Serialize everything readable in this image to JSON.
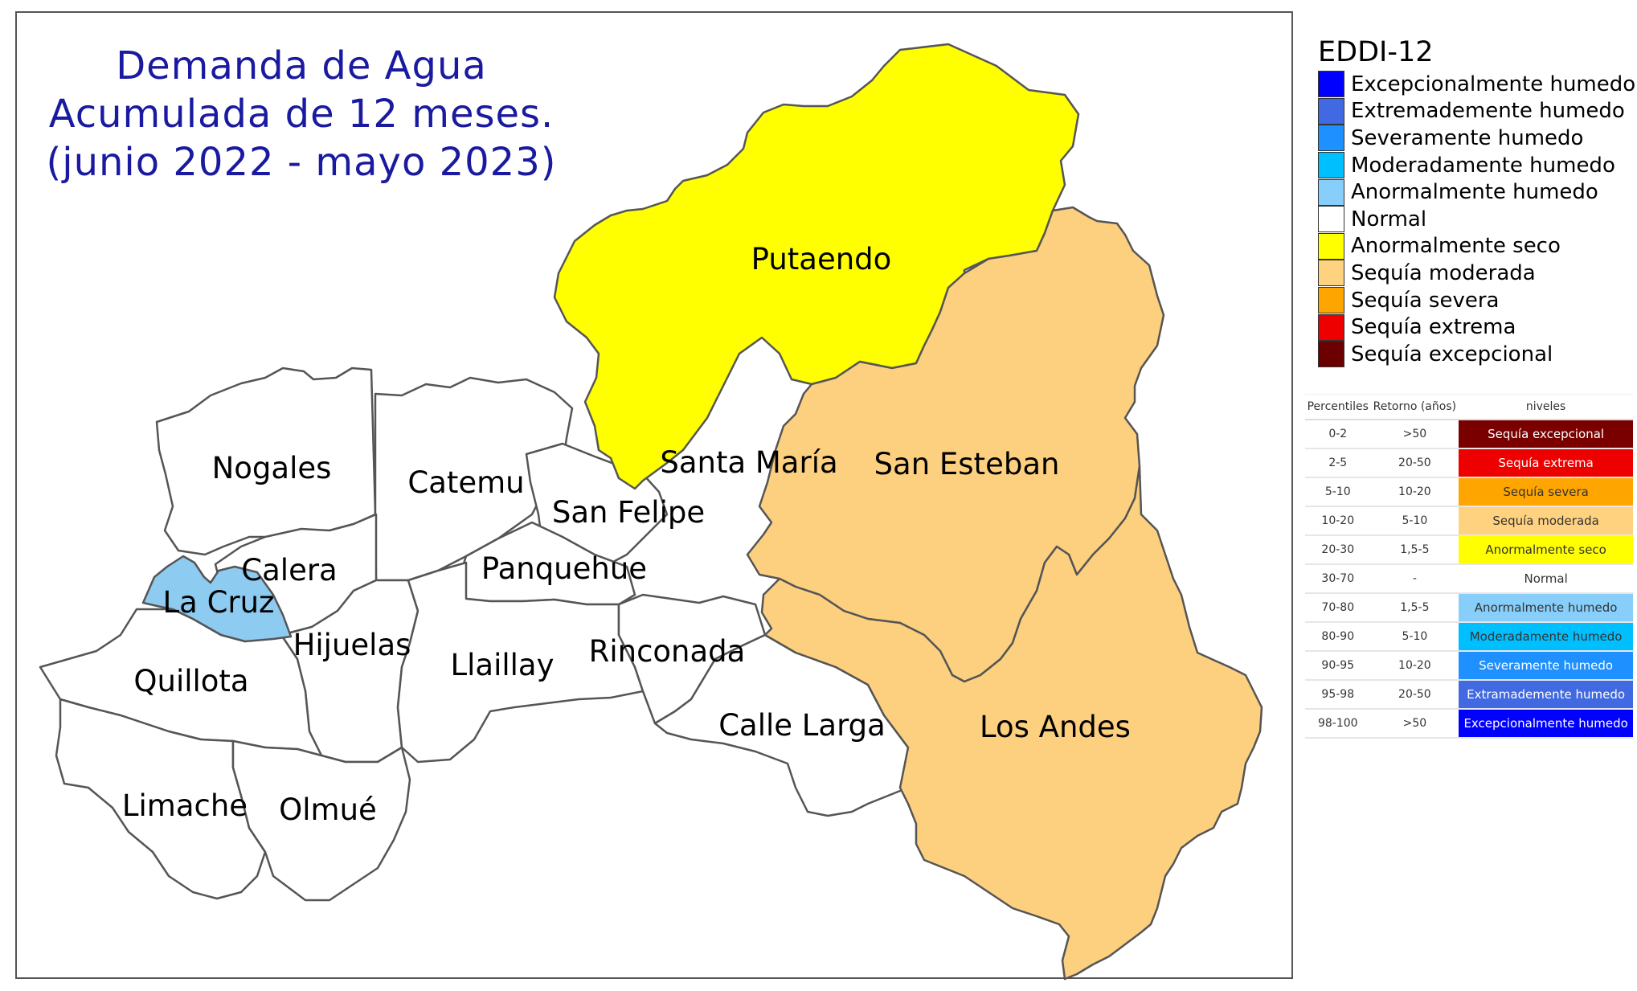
{
  "title": {
    "line1": "Demanda de Agua",
    "line2": "Acumulada de 12 meses.",
    "line3": "(junio 2022 - mayo 2023)"
  },
  "regions": [
    {
      "name": "Putaendo",
      "category": "Anormalmente seco",
      "color": "#ffff00"
    },
    {
      "name": "San Esteban",
      "category": "Sequía moderada",
      "color": "#fdd080"
    },
    {
      "name": "Los Andes",
      "category": "Sequía moderada",
      "color": "#fdd080"
    },
    {
      "name": "La Cruz",
      "category": "Anormalmente humedo",
      "color": "#8dcbf0"
    },
    {
      "name": "Santa María",
      "category": "Normal",
      "color": "#ffffff"
    },
    {
      "name": "Nogales",
      "category": "Normal",
      "color": "#ffffff"
    },
    {
      "name": "Catemu",
      "category": "Normal",
      "color": "#ffffff"
    },
    {
      "name": "San Felipe",
      "category": "Normal",
      "color": "#ffffff"
    },
    {
      "name": "Calera",
      "category": "Normal",
      "color": "#ffffff"
    },
    {
      "name": "Panquehue",
      "category": "Normal",
      "color": "#ffffff"
    },
    {
      "name": "Hijuelas",
      "category": "Normal",
      "color": "#ffffff"
    },
    {
      "name": "Llaillay",
      "category": "Normal",
      "color": "#ffffff"
    },
    {
      "name": "Rinconada",
      "category": "Normal",
      "color": "#ffffff"
    },
    {
      "name": "Quillota",
      "category": "Normal",
      "color": "#ffffff"
    },
    {
      "name": "Calle Larga",
      "category": "Normal",
      "color": "#ffffff"
    },
    {
      "name": "Limache",
      "category": "Normal",
      "color": "#ffffff"
    },
    {
      "name": "Olmué",
      "category": "Normal",
      "color": "#ffffff"
    }
  ],
  "legend": {
    "title": "EDDI-12",
    "items": [
      {
        "label": "Excepcionalmente humedo",
        "color": "#0000ff"
      },
      {
        "label": "Extremademente humedo",
        "color": "#4169e1"
      },
      {
        "label": "Severamente humedo",
        "color": "#1e90ff"
      },
      {
        "label": "Moderadamente humedo",
        "color": "#00bfff"
      },
      {
        "label": "Anormalmente humedo",
        "color": "#87cefa"
      },
      {
        "label": "Normal",
        "color": "#ffffff"
      },
      {
        "label": "Anormalmente seco",
        "color": "#ffff00"
      },
      {
        "label": "Sequía moderada",
        "color": "#ffd280"
      },
      {
        "label": "Sequía severa",
        "color": "#ffa500"
      },
      {
        "label": "Sequía extrema",
        "color": "#ee0000"
      },
      {
        "label": "Sequía excepcional",
        "color": "#6b0000"
      }
    ]
  },
  "table": {
    "headers": [
      "Percentiles",
      "Retorno (años)",
      "niveles"
    ],
    "rows": [
      {
        "percentiles": "0-2",
        "retorno": ">50",
        "nivel": "Sequía excepcional",
        "bg": "#7a0000",
        "fg": "#ffffff"
      },
      {
        "percentiles": "2-5",
        "retorno": "20-50",
        "nivel": "Sequía extrema",
        "bg": "#ee0000",
        "fg": "#ffffff"
      },
      {
        "percentiles": "5-10",
        "retorno": "10-20",
        "nivel": "Sequía severa",
        "bg": "#ffa500",
        "fg": "#333333"
      },
      {
        "percentiles": "10-20",
        "retorno": "5-10",
        "nivel": "Sequía moderada",
        "bg": "#ffd280",
        "fg": "#333333"
      },
      {
        "percentiles": "20-30",
        "retorno": "1,5-5",
        "nivel": "Anormalmente seco",
        "bg": "#ffff00",
        "fg": "#333333"
      },
      {
        "percentiles": "30-70",
        "retorno": "-",
        "nivel": "Normal",
        "bg": "#ffffff",
        "fg": "#333333"
      },
      {
        "percentiles": "70-80",
        "retorno": "1,5-5",
        "nivel": "Anormalmente humedo",
        "bg": "#87cefa",
        "fg": "#333333"
      },
      {
        "percentiles": "80-90",
        "retorno": "5-10",
        "nivel": "Moderadamente humedo",
        "bg": "#00bfff",
        "fg": "#333333"
      },
      {
        "percentiles": "90-95",
        "retorno": "10-20",
        "nivel": "Severamente humedo",
        "bg": "#1e90ff",
        "fg": "#ffffff"
      },
      {
        "percentiles": "95-98",
        "retorno": "20-50",
        "nivel": "Extramademente humedo",
        "bg": "#4169e1",
        "fg": "#ffffff"
      },
      {
        "percentiles": "98-100",
        "retorno": ">50",
        "nivel": "Excepcionalmente humedo",
        "bg": "#0000ff",
        "fg": "#ffffff"
      }
    ]
  }
}
